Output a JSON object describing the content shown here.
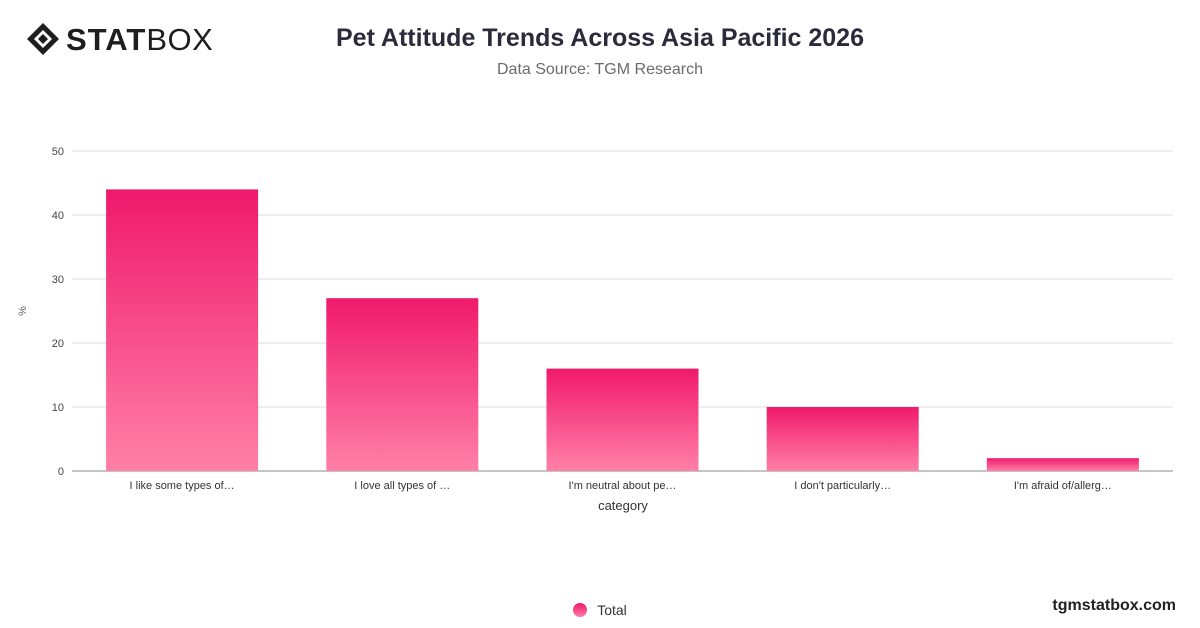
{
  "logo": {
    "text_bold": "STAT",
    "text_light": "BOX",
    "icon": "diamond-logo-icon"
  },
  "brand_url": "tgmstatbox.com",
  "colors": {
    "bar_top": "#f0196b",
    "bar_bottom": "#ff80a8",
    "grid": "#dddddd",
    "axis": "#888888"
  },
  "chart_data": {
    "type": "bar",
    "title": "Pet Attitude Trends Across Asia Pacific 2026",
    "subtitle": "Data Source: TGM Research",
    "xlabel": "category",
    "ylabel": "%",
    "categories": [
      "I like some types of…",
      "I love all types of …",
      "I'm neutral about pe…",
      "I don't particularly…",
      "I'm afraid of/allerg…"
    ],
    "series": [
      {
        "name": "Total",
        "values": [
          44,
          27,
          16,
          10,
          2
        ]
      }
    ],
    "ylim": [
      0,
      50
    ],
    "yticks": [
      0,
      10,
      20,
      30,
      40,
      50
    ],
    "grid": true,
    "legend_position": "bottom"
  }
}
